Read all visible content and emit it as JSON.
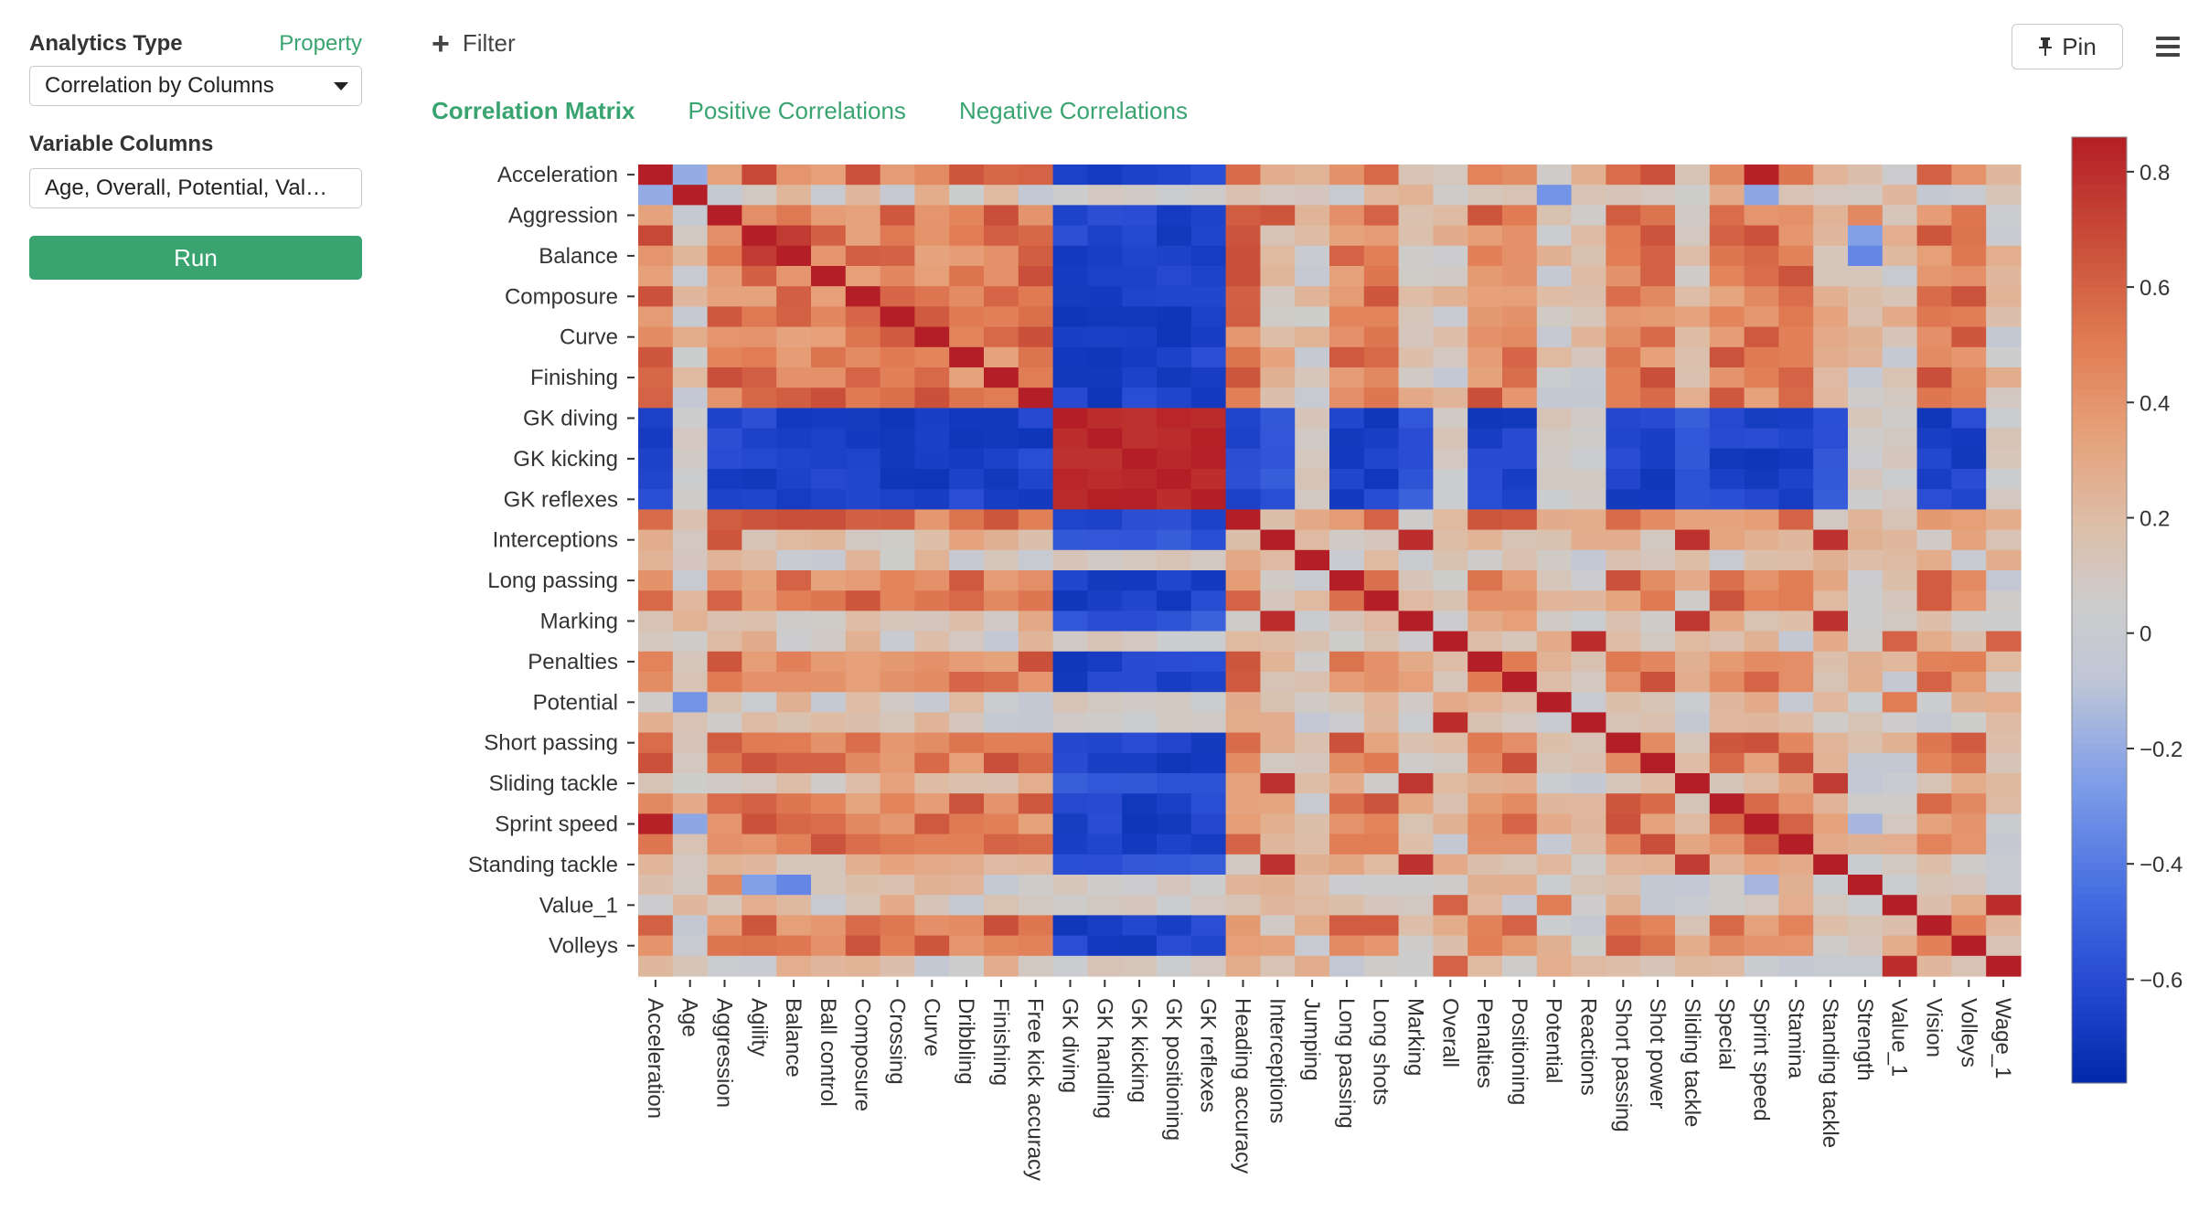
{
  "sidebar": {
    "analytics_type_label": "Analytics Type",
    "property_link": "Property",
    "analytics_type_value": "Correlation by Columns",
    "variable_columns_label": "Variable Columns",
    "variable_columns_value": "Age, Overall, Potential, Val…",
    "run_label": "Run"
  },
  "toolbar": {
    "filter_label": "Filter",
    "pin_label": "Pin"
  },
  "tabs": [
    {
      "label": "Correlation Matrix",
      "active": true
    },
    {
      "label": "Positive Correlations",
      "active": false
    },
    {
      "label": "Negative Correlations",
      "active": false
    }
  ],
  "colors": {
    "accent": "#3aa471",
    "colormap": "coolwarm"
  },
  "chart_data": {
    "type": "heatmap",
    "x": [
      "Acceleration",
      "Age",
      "Aggression",
      "Agility",
      "Balance",
      "Ball control",
      "Composure",
      "Crossing",
      "Curve",
      "Dribbling",
      "Finishing",
      "Free kick accuracy",
      "GK diving",
      "GK handling",
      "GK kicking",
      "GK positioning",
      "GK reflexes",
      "Heading accuracy",
      "Interceptions",
      "Jumping",
      "Long passing",
      "Long shots",
      "Marking",
      "Overall",
      "Penalties",
      "Positioning",
      "Potential",
      "Reactions",
      "Short passing",
      "Shot power",
      "Sliding tackle",
      "Special",
      "Sprint speed",
      "Stamina",
      "Standing tackle",
      "Strength",
      "Value_1",
      "Vision",
      "Volleys",
      "Wage_1"
    ],
    "y_tick_labels": [
      "Acceleration",
      "Aggression",
      "Balance",
      "Composure",
      "Curve",
      "Finishing",
      "GK diving",
      "GK kicking",
      "GK reflexes",
      "Interceptions",
      "Long passing",
      "Marking",
      "Penalties",
      "Potential",
      "Short passing",
      "Sliding tackle",
      "Sprint speed",
      "Standing tackle",
      "Value_1",
      "Volleys"
    ],
    "colorbar_ticks": [
      0.8,
      0.6,
      0.4,
      0.2,
      0,
      -0.2,
      -0.4,
      -0.6
    ],
    "colorbar_range": [
      -0.78,
      0.86
    ],
    "diagonal": 1.0,
    "groups": {
      "gk": [
        "GK diving",
        "GK handling",
        "GK kicking",
        "GK positioning",
        "GK reflexes"
      ]
    },
    "typical_values": {
      "gk_gk": 0.82,
      "gk_with_outfield_skill": -0.65,
      "gk_with_defensive": -0.55,
      "gk_with_neutral": 0.08,
      "skill_skill": 0.5,
      "defensive_defensive": 0.78
    },
    "title": "",
    "xlabel": "",
    "ylabel": ""
  }
}
